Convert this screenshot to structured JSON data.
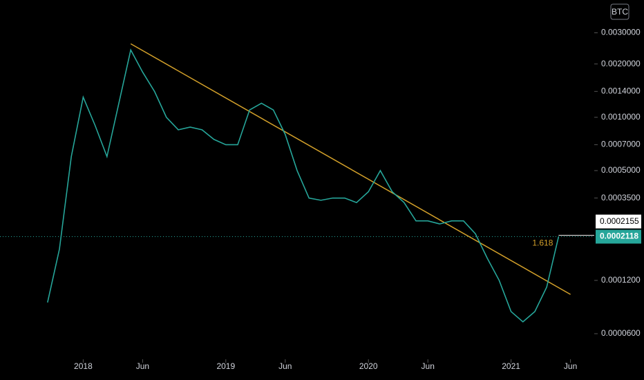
{
  "chart_data": {
    "type": "line",
    "badge": "BTC",
    "log_scale": true,
    "x": [
      "2017-10",
      "2017-11",
      "2017-12",
      "2018-01",
      "2018-02",
      "2018-03",
      "2018-04",
      "2018-05",
      "2018-06",
      "2018-07",
      "2018-08",
      "2018-09",
      "2018-10",
      "2018-11",
      "2018-12",
      "2019-01",
      "2019-02",
      "2019-03",
      "2019-04",
      "2019-05",
      "2019-06",
      "2019-07",
      "2019-08",
      "2019-09",
      "2019-10",
      "2019-11",
      "2019-12",
      "2020-01",
      "2020-02",
      "2020-03",
      "2020-04",
      "2020-05",
      "2020-06",
      "2020-07",
      "2020-08",
      "2020-09",
      "2020-10",
      "2020-11",
      "2020-12",
      "2021-01",
      "2021-02",
      "2021-03",
      "2021-04",
      "2021-05"
    ],
    "series": [
      {
        "color": "#26a69a",
        "values": [
          9e-05,
          0.00018,
          0.0006,
          0.0013,
          0.0009,
          0.0006,
          0.0012,
          0.0024,
          0.0018,
          0.0014,
          0.001,
          0.00085,
          0.00088,
          0.00085,
          0.00075,
          0.0007,
          0.0007,
          0.0011,
          0.0012,
          0.0011,
          0.0008,
          0.0005,
          0.00035,
          0.00034,
          0.00035,
          0.00035,
          0.00033,
          0.00038,
          0.0005,
          0.00038,
          0.00033,
          0.00026,
          0.00026,
          0.00025,
          0.00026,
          0.00026,
          0.00022,
          0.00016,
          0.00012,
          8e-05,
          7e-05,
          8e-05,
          0.00011,
          0.0002118
        ]
      }
    ],
    "trendline": {
      "color": "#d4a12a",
      "x": [
        "2018-05",
        "2021-06"
      ],
      "values": [
        0.0026,
        0.0001
      ]
    },
    "annotation": "1.618",
    "price_labels": [
      {
        "value": 0.0002155,
        "label": "0.0002155"
      },
      {
        "value": 0.0002118,
        "label": "0.0002118"
      }
    ],
    "xlim": [
      "2017-06",
      "2021-08"
    ],
    "xticks": [
      {
        "value": "2018-01",
        "label": "2018"
      },
      {
        "value": "2018-06",
        "label": "Jun"
      },
      {
        "value": "2019-01",
        "label": "2019"
      },
      {
        "value": "2019-06",
        "label": "Jun"
      },
      {
        "value": "2020-01",
        "label": "2020"
      },
      {
        "value": "2020-06",
        "label": "Jun"
      },
      {
        "value": "2021-01",
        "label": "2021"
      },
      {
        "value": "2021-06",
        "label": "Jun"
      }
    ],
    "ylim": [
      4.5e-05,
      0.0042
    ],
    "yticks": [
      {
        "value": 6e-05,
        "label": "0.0000600"
      },
      {
        "value": 0.00012,
        "label": "0.0001200"
      },
      {
        "value": 0.00035,
        "label": "0.0003500"
      },
      {
        "value": 0.0005,
        "label": "0.0005000"
      },
      {
        "value": 0.0007,
        "label": "0.0007000"
      },
      {
        "value": 0.001,
        "label": "0.0010000"
      },
      {
        "value": 0.0014,
        "label": "0.0014000"
      },
      {
        "value": 0.002,
        "label": "0.0020000"
      },
      {
        "value": 0.003,
        "label": "0.0030000"
      }
    ]
  }
}
